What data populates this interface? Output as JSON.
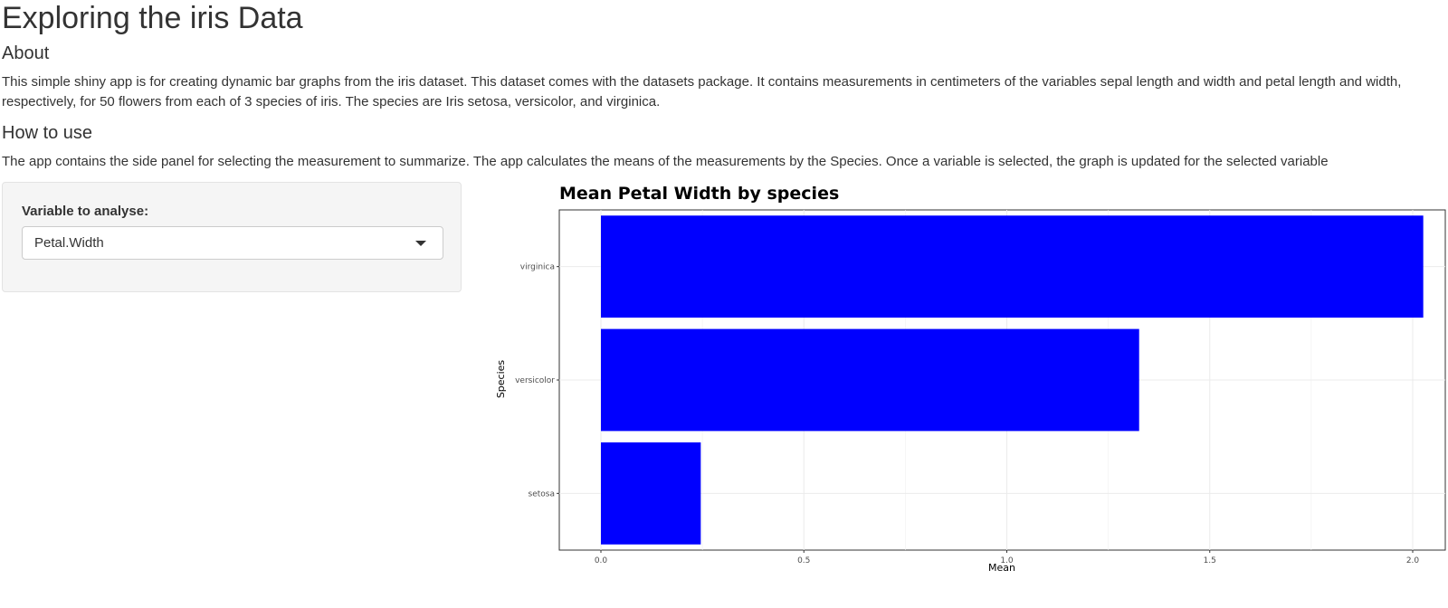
{
  "header": {
    "title": "Exploring the iris Data"
  },
  "about": {
    "heading": "About",
    "text": "This simple shiny app is for creating dynamic bar graphs from the iris dataset. This dataset comes with the datasets package. It contains measurements in centimeters of the variables sepal length and width and petal length and width, respectively, for 50 flowers from each of 3 species of iris. The species are Iris setosa, versicolor, and virginica."
  },
  "how_to_use": {
    "heading": "How to use",
    "text": "The app contains the side panel for selecting the measurement to summarize. The app calculates the means of the measurements by the Species. Once a variable is selected, the graph is updated for the selected variable"
  },
  "sidebar": {
    "label": "Variable to analyse:",
    "select_value": "Petal.Width",
    "caret_icon": "chevron-down-icon"
  },
  "chart_data": {
    "type": "bar",
    "orientation": "horizontal",
    "title": "Mean Petal Width by species",
    "xlabel": "Mean",
    "ylabel": "Species",
    "categories": [
      "setosa",
      "versicolor",
      "virginica"
    ],
    "values": [
      0.246,
      1.326,
      2.026
    ],
    "xlim": [
      0,
      2.1
    ],
    "xticks": [
      "0.0",
      "0.5",
      "1.0",
      "1.5",
      "2.0"
    ],
    "bar_color": "#0000ff",
    "grid": true
  }
}
